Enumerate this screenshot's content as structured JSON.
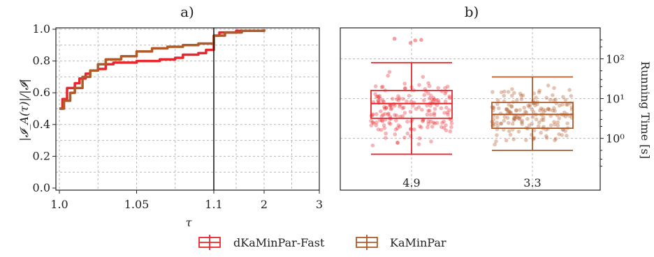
{
  "chart_data": [
    {
      "panel": "a)",
      "type": "line",
      "title": "a)",
      "xlabel": "τ",
      "ylabel": "|𝓘_A(τ)|/|𝓘|",
      "ylim": [
        0,
        1
      ],
      "yticks": [
        "0.0",
        "0.2",
        "0.4",
        "0.6",
        "0.8",
        "1.0"
      ],
      "xticks": [
        "1.0",
        "1.05",
        "1.1",
        "2",
        "3"
      ],
      "x_scale": "linear [1, 1.1], then compressed [1.1, 3]",
      "grid": true,
      "series": [
        {
          "name": "dKaMinPar-Fast",
          "color": "#e8262c",
          "x": [
            1.0,
            1.002,
            1.005,
            1.01,
            1.013,
            1.017,
            1.02,
            1.025,
            1.03,
            1.035,
            1.04,
            1.05,
            1.06,
            1.065,
            1.07,
            1.075,
            1.08,
            1.09,
            1.095,
            1.1,
            1.1,
            1.2,
            1.5,
            2.0
          ],
          "y": [
            0.5,
            0.56,
            0.63,
            0.66,
            0.69,
            0.72,
            0.74,
            0.75,
            0.78,
            0.79,
            0.79,
            0.8,
            0.8,
            0.81,
            0.81,
            0.82,
            0.84,
            0.85,
            0.87,
            0.89,
            0.96,
            0.98,
            0.99,
            1.0
          ]
        },
        {
          "name": "KaMinPar",
          "color": "#b15a28",
          "x": [
            1.0,
            1.003,
            1.007,
            1.01,
            1.015,
            1.02,
            1.025,
            1.03,
            1.04,
            1.05,
            1.06,
            1.07,
            1.08,
            1.09,
            1.1,
            1.1,
            1.3,
            1.6,
            2.0
          ],
          "y": [
            0.5,
            0.55,
            0.6,
            0.63,
            0.7,
            0.74,
            0.78,
            0.81,
            0.83,
            0.86,
            0.88,
            0.89,
            0.9,
            0.91,
            0.92,
            0.96,
            0.98,
            0.99,
            1.0
          ]
        }
      ]
    },
    {
      "panel": "b)",
      "type": "box",
      "title": "b)",
      "ylabel": "Running Time [s]",
      "yscale": "log",
      "ylim": [
        0.05,
        600
      ],
      "yticks": [
        {
          "value": 1,
          "label": "10⁰"
        },
        {
          "value": 10,
          "label": "10¹"
        },
        {
          "value": 100,
          "label": "10²"
        }
      ],
      "grid": true,
      "boxes": [
        {
          "name": "dKaMinPar-Fast",
          "color": "#e8262c",
          "whisker_low": 0.4,
          "q1": 3.2,
          "median": 7.5,
          "q3": 16,
          "whisker_high": 80,
          "outliers_high": [
            320,
            300,
            290,
            250
          ],
          "annotation": "4.9"
        },
        {
          "name": "KaMinPar",
          "color": "#b15a28",
          "whisker_low": 0.5,
          "q1": 1.8,
          "median": 4.0,
          "q3": 8.0,
          "whisker_high": 35,
          "outliers_high": [],
          "annotation": "3.3"
        }
      ]
    }
  ],
  "legend": [
    {
      "name": "dKaMinPar-Fast",
      "color": "#e8262c"
    },
    {
      "name": "KaMinPar",
      "color": "#b15a28"
    }
  ]
}
